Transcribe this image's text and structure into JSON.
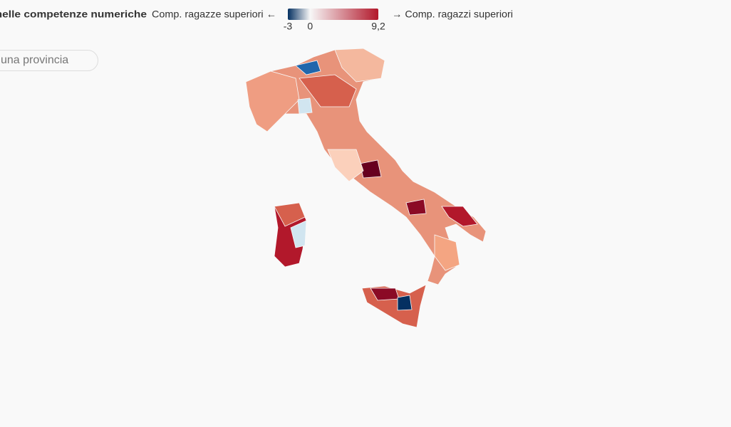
{
  "header": {
    "title": "ere nelle competenze numeriche",
    "legend_left": "Comp. ragazze superiori ←",
    "legend_right": "→ Comp. ragazzi superiori",
    "scale": {
      "min": -3,
      "max": 9.2,
      "colors": [
        "#053061",
        "#f7f7f7",
        "#b2182b"
      ],
      "ticks": [
        -3,
        0,
        {
          "value": 9.2,
          "label": "9,2"
        }
      ]
    }
  },
  "search": {
    "placeholder": "una provincia"
  }
}
